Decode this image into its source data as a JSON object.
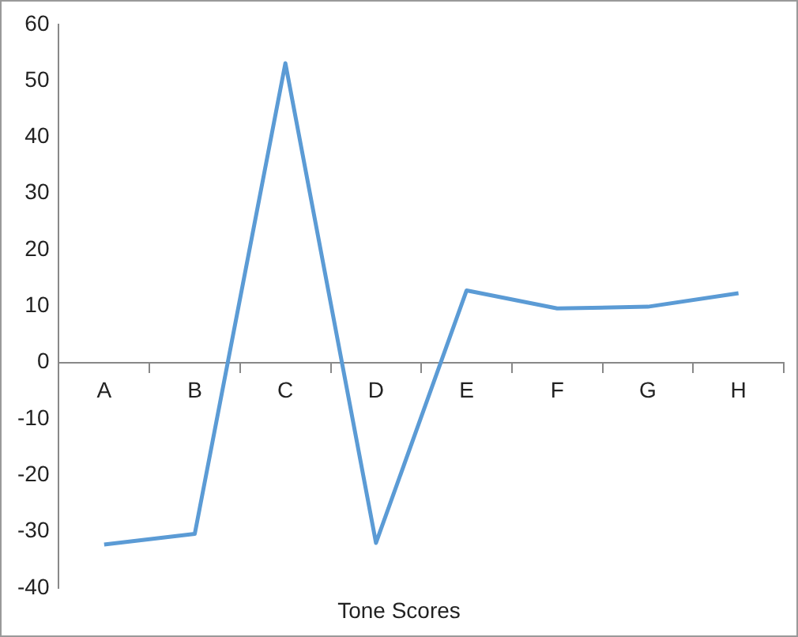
{
  "chart_data": {
    "type": "line",
    "xlabel": "Tone Scores",
    "categories": [
      "A",
      "B",
      "C",
      "D",
      "E",
      "F",
      "G",
      "H"
    ],
    "series": [
      {
        "color": "#5b9bd5",
        "values": [
          -32.3,
          -30.4,
          53.1,
          -32,
          12.8,
          9.6,
          9.9,
          12.3
        ]
      }
    ],
    "ylim": [
      -40,
      60
    ],
    "yticks": [
      -40,
      -30,
      -20,
      -10,
      0,
      10,
      20,
      30,
      40,
      50,
      60
    ],
    "grid": false,
    "legend": false,
    "marker": "none",
    "line_style": "solid"
  }
}
